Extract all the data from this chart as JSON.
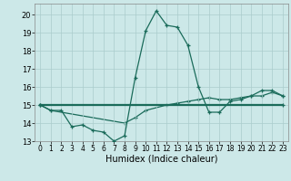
{
  "title": "",
  "xlabel": "Humidex (Indice chaleur)",
  "background_color": "#cce8e8",
  "grid_color": "#aacccc",
  "line_color": "#1a6b5a",
  "series": [
    {
      "x": [
        0,
        1,
        2,
        3,
        4,
        5,
        6,
        7,
        8,
        9,
        10,
        11,
        12,
        13,
        14,
        15,
        16,
        17,
        18,
        19,
        20,
        21,
        22,
        23
      ],
      "y": [
        15.0,
        14.7,
        14.7,
        13.8,
        13.9,
        13.6,
        13.5,
        13.0,
        13.3,
        16.5,
        19.1,
        20.2,
        19.4,
        19.3,
        18.3,
        16.0,
        14.6,
        14.6,
        15.2,
        15.3,
        15.5,
        15.8,
        15.8,
        15.5
      ]
    },
    {
      "x": [
        0,
        23
      ],
      "y": [
        15.0,
        15.0
      ]
    },
    {
      "x": [
        0,
        1,
        8,
        9,
        10,
        12,
        13,
        14,
        15,
        16,
        17,
        18,
        19,
        20,
        21,
        22,
        23
      ],
      "y": [
        15.0,
        14.7,
        14.0,
        14.3,
        14.7,
        15.0,
        15.1,
        15.2,
        15.3,
        15.4,
        15.3,
        15.3,
        15.4,
        15.5,
        15.5,
        15.7,
        15.5
      ]
    }
  ],
  "xlim": [
    -0.5,
    23.5
  ],
  "ylim": [
    13.0,
    20.6
  ],
  "yticks": [
    13,
    14,
    15,
    16,
    17,
    18,
    19,
    20
  ],
  "xticks": [
    0,
    1,
    2,
    3,
    4,
    5,
    6,
    7,
    8,
    9,
    10,
    11,
    12,
    13,
    14,
    15,
    16,
    17,
    18,
    19,
    20,
    21,
    22,
    23
  ],
  "tick_fontsize": 6,
  "xlabel_fontsize": 7,
  "linewidth": 0.9,
  "marker_size": 3
}
